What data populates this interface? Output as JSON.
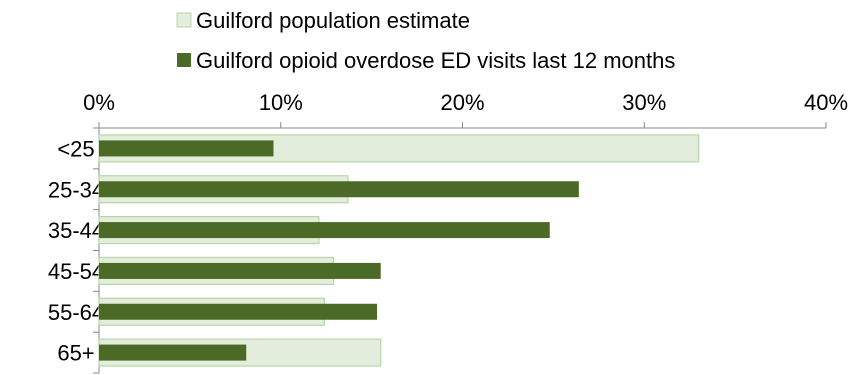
{
  "chart_data": {
    "type": "bar",
    "orientation": "horizontal",
    "categories": [
      "<25",
      "25-34",
      "35-44",
      "45-54",
      "55-64",
      "65+"
    ],
    "series": [
      {
        "name": "Guilford population estimate",
        "values": [
          33,
          13.7,
          12.1,
          12.9,
          12.4,
          15.5
        ],
        "color": "#e2eedb",
        "border_color": "#b9d5a8"
      },
      {
        "name": "Guilford opioid overdose ED visits last 12 months",
        "values": [
          9.6,
          26.4,
          24.8,
          15.5,
          15.3,
          8.1
        ],
        "color": "#4a6a26"
      }
    ],
    "xlim": [
      0,
      40
    ],
    "xticks": [
      "0%",
      "10%",
      "20%",
      "30%",
      "40%"
    ],
    "x_axis_position": "top",
    "legend_position": "top",
    "grid": false,
    "title": "",
    "xlabel": "",
    "ylabel": ""
  }
}
